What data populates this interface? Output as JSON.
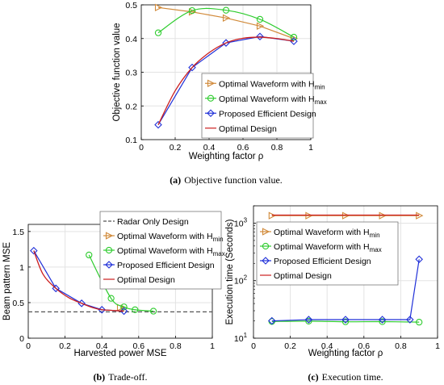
{
  "colors": {
    "hmin": "#d18a3a",
    "hmax": "#2ecc2e",
    "proposed": "#1f2fd8",
    "optimal": "#cc1f1f",
    "radar": "#555555",
    "axis": "#000000",
    "grid": "#e3e3e3"
  },
  "chart_data": [
    {
      "id": "a",
      "type": "line",
      "title": "",
      "xlabel": "Weighting factor ρ",
      "ylabel": "Objective function value",
      "xlim": [
        0,
        1
      ],
      "ylim": [
        0.1,
        0.5
      ],
      "xticks": [
        "0",
        "0.2",
        "0.4",
        "0.6",
        "0.8",
        "1"
      ],
      "yticks": [
        "0.1",
        "0.2",
        "0.3",
        "0.4",
        "0.5"
      ],
      "grid": true,
      "legend_placement": "bottom-right",
      "caption_label": "(a)",
      "caption_text": "Objective function value.",
      "series": [
        {
          "key": "hmin",
          "legend": "Optimal Waveform with H",
          "sub": "min",
          "marker": "triangle-right",
          "x": [
            0.1,
            0.3,
            0.5,
            0.7,
            0.9
          ],
          "y": [
            0.492,
            0.479,
            0.461,
            0.437,
            0.4
          ]
        },
        {
          "key": "hmax",
          "legend": "Optimal Waveform with H",
          "sub": "max",
          "marker": "circle",
          "x": [
            0.1,
            0.3,
            0.5,
            0.7,
            0.9
          ],
          "y": [
            0.417,
            0.483,
            0.484,
            0.457,
            0.404
          ]
        },
        {
          "key": "proposed",
          "legend": "Proposed Efficient Design",
          "sub": "",
          "marker": "diamond",
          "x": [
            0.1,
            0.3,
            0.5,
            0.7,
            0.9
          ],
          "y": [
            0.144,
            0.314,
            0.387,
            0.406,
            0.392
          ]
        },
        {
          "key": "optimal",
          "legend": "Optimal Design",
          "sub": "",
          "marker": "none",
          "x": [
            0.1,
            0.2,
            0.3,
            0.4,
            0.5,
            0.6,
            0.7,
            0.8,
            0.9
          ],
          "y": [
            0.144,
            0.245,
            0.314,
            0.358,
            0.387,
            0.401,
            0.404,
            0.4,
            0.392
          ]
        }
      ]
    },
    {
      "id": "b",
      "type": "line",
      "title": "",
      "xlabel": "Harvested power MSE",
      "ylabel": "Beam pattern MSE",
      "xlim": [
        0,
        1
      ],
      "ylim": [
        0,
        1.6
      ],
      "xticks": [
        "0",
        "0.2",
        "0.4",
        "0.6",
        "0.8",
        "1"
      ],
      "yticks": [
        "0",
        "0.5",
        "1",
        "1.5"
      ],
      "grid": true,
      "legend_placement": "top-right",
      "caption_label": "(b)",
      "caption_text": "Trade-off.",
      "series": [
        {
          "key": "radar",
          "legend": "Radar Only Design",
          "sub": "",
          "marker": "none",
          "dashed": true,
          "x": [
            0,
            1
          ],
          "y": [
            0.37,
            0.37
          ]
        },
        {
          "key": "hmin",
          "legend": "Optimal Waveform with H",
          "sub": "min",
          "marker": "triangle-right",
          "x": [
            0.5,
            0.52
          ],
          "y": [
            0.43,
            0.42
          ]
        },
        {
          "key": "hmax",
          "legend": "Optimal Waveform with H",
          "sub": "max",
          "marker": "circle",
          "x": [
            0.33,
            0.45,
            0.52,
            0.58,
            0.68
          ],
          "y": [
            1.17,
            0.56,
            0.44,
            0.4,
            0.38
          ]
        },
        {
          "key": "proposed",
          "legend": "Proposed Efficient Design",
          "sub": "",
          "marker": "diamond",
          "x": [
            0.03,
            0.15,
            0.29,
            0.4,
            0.52
          ],
          "y": [
            1.23,
            0.7,
            0.49,
            0.4,
            0.38
          ]
        },
        {
          "key": "optimal",
          "legend": "Optimal Design",
          "sub": "",
          "marker": "none",
          "x": [
            0.03,
            0.08,
            0.15,
            0.22,
            0.29,
            0.35,
            0.4,
            0.46,
            0.52
          ],
          "y": [
            1.23,
            0.9,
            0.7,
            0.57,
            0.49,
            0.43,
            0.4,
            0.39,
            0.38
          ]
        }
      ]
    },
    {
      "id": "c",
      "type": "line",
      "title": "",
      "xlabel": "Weighting factor ρ",
      "ylabel": "Execution time (Seconds)",
      "xlim": [
        0,
        1
      ],
      "ylim": [
        10,
        2000
      ],
      "yscale": "log",
      "xticks": [
        "0",
        "0.2",
        "0.4",
        "0.6",
        "0.8",
        "1"
      ],
      "yticks": [
        {
          "base": "10",
          "exp": "1",
          "value": 10
        },
        {
          "base": "10",
          "exp": "2",
          "value": 100
        },
        {
          "base": "10",
          "exp": "3",
          "value": 1000
        }
      ],
      "grid": true,
      "legend_placement": "top-left",
      "caption_label": "(c)",
      "caption_text": "Execution time.",
      "series": [
        {
          "key": "hmin",
          "legend": "Optimal Waveform with H",
          "sub": "min",
          "marker": "triangle-right",
          "x": [
            0.1,
            0.3,
            0.5,
            0.7,
            0.9
          ],
          "y": [
            1350,
            1350,
            1350,
            1350,
            1350
          ]
        },
        {
          "key": "hmax",
          "legend": "Optimal Waveform with H",
          "sub": "max",
          "marker": "circle",
          "x": [
            0.1,
            0.3,
            0.5,
            0.7,
            0.9
          ],
          "y": [
            19.5,
            19.8,
            19.3,
            19.4,
            19
          ]
        },
        {
          "key": "proposed",
          "legend": "Proposed Efficient Design",
          "sub": "",
          "marker": "diamond",
          "x": [
            0.1,
            0.3,
            0.5,
            0.7,
            0.85,
            0.9
          ],
          "y": [
            20,
            21,
            21,
            21,
            21,
            235
          ]
        },
        {
          "key": "optimal",
          "legend": "Optimal Design",
          "sub": "",
          "marker": "none",
          "x": [
            0.1,
            0.9
          ],
          "y": [
            1380,
            1380
          ]
        }
      ]
    }
  ]
}
